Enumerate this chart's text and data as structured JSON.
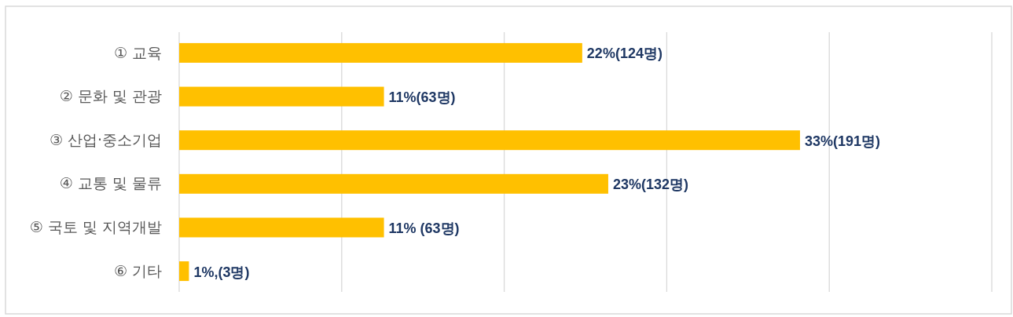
{
  "chart_data": {
    "type": "bar",
    "orientation": "horizontal",
    "categories": [
      "① 교육",
      "② 문화 및 관광",
      "③  산업·중소기업",
      "④ 교통 및 물류",
      "⑤ 국토 및 지역개발",
      "⑥ 기타"
    ],
    "values": [
      124,
      63,
      191,
      132,
      63,
      3
    ],
    "value_labels": [
      "22%(124명)",
      "11%(63명)",
      "33%(191명)",
      "23%(132명)",
      "11% (63명)",
      "1%,(3명)"
    ],
    "color": "#ffc000",
    "xlim": [
      0,
      250
    ],
    "xticks": [
      {
        "value": 0,
        "label": null
      },
      {
        "value": 50,
        "label": null
      },
      {
        "value": 100,
        "label": null
      },
      {
        "value": 150,
        "label": null
      },
      {
        "value": 200,
        "label": null
      },
      {
        "value": 250,
        "label": null
      }
    ],
    "grid": "x",
    "tick_labels": "y"
  }
}
